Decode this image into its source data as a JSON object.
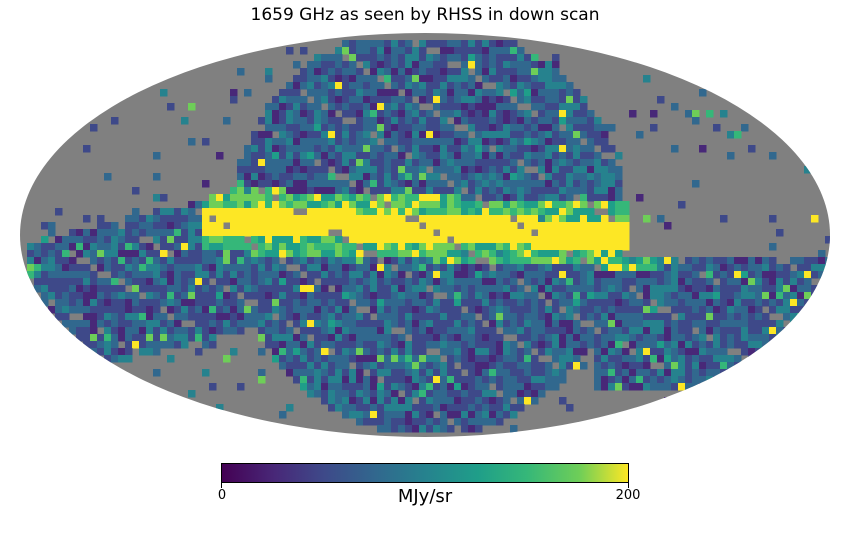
{
  "title": "1659 GHz as seen by RHSS in down scan",
  "colorbar": {
    "min_label": "0",
    "max_label": "200",
    "unit": "MJy/sr",
    "min": 0,
    "max": 200,
    "colormap": "viridis"
  },
  "map": {
    "projection": "mollweide",
    "background_color": "#808080",
    "features": [
      {
        "name": "galactic-plane",
        "level": 200
      },
      {
        "name": "scan-coverage",
        "level": 50
      }
    ]
  }
}
